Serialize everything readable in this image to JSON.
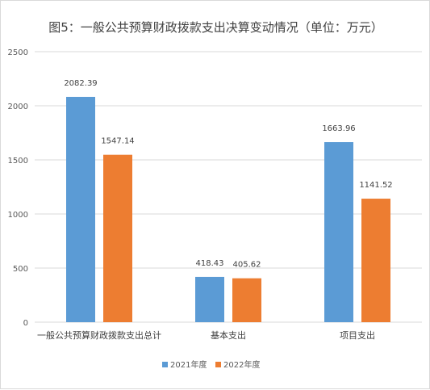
{
  "chart_data": {
    "type": "bar",
    "title": "图5：一般公共预算财政拨款支出决算变动情况（单位：万元）",
    "categories": [
      "一般公共预算财政拨款支出总计",
      "基本支出",
      "项目支出"
    ],
    "series": [
      {
        "name": "2021年度",
        "color": "#5b9bd5",
        "values": [
          2082.39,
          418.43,
          1663.96
        ]
      },
      {
        "name": "2022年度",
        "color": "#ed7d31",
        "values": [
          1547.14,
          405.62,
          1141.52
        ]
      }
    ],
    "ylim": [
      0,
      2500
    ],
    "yticks": [
      0,
      500,
      1000,
      1500,
      2000,
      2500
    ],
    "grid": true,
    "legend": "bottom"
  }
}
